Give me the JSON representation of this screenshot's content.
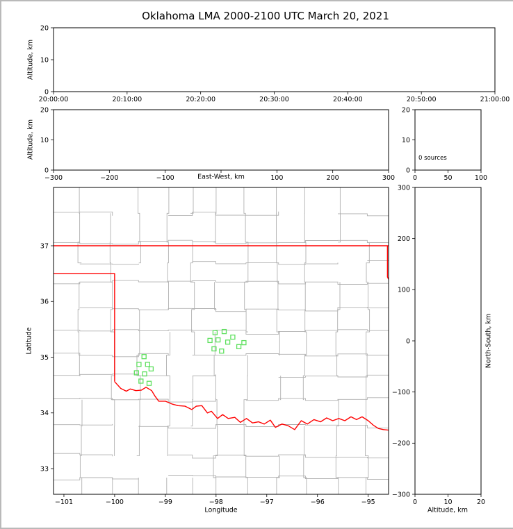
{
  "title": "Oklahoma LMA 2000-2100 UTC March 20, 2021",
  "colors": {
    "state_border": "#ff0000",
    "county_lines": "#b0b0b0",
    "station_marker": "#5fe05f",
    "frame": "#000000",
    "background": "#ffffff",
    "outer_border": "#b9b9b9"
  },
  "chart_data": [
    {
      "id": "time_height",
      "type": "scatter",
      "xlabel": "",
      "ylabel": "Altitude, km",
      "xlim": [
        "20:00:00",
        "21:00:00"
      ],
      "ylim": [
        0,
        20
      ],
      "x_ticks": [
        "20:00:00",
        "20:10:00",
        "20:20:00",
        "20:30:00",
        "20:40:00",
        "20:50:00",
        "21:00:00"
      ],
      "y_ticks": [
        "0",
        "10",
        "20"
      ],
      "points": []
    },
    {
      "id": "ew_height",
      "type": "scatter",
      "xlabel": "East-West, km",
      "ylabel": "Altitude, km",
      "xlim": [
        -300,
        300
      ],
      "ylim": [
        0,
        20
      ],
      "x_ticks": [
        "−300",
        "−200",
        "−100",
        "",
        "100",
        "200",
        "300"
      ],
      "y_ticks": [
        "0",
        "10",
        "20"
      ],
      "points": []
    },
    {
      "id": "altitude_histogram",
      "type": "line",
      "xlabel": "",
      "ylabel": "",
      "xlim": [
        0,
        100
      ],
      "ylim": [
        0,
        20
      ],
      "x_ticks": [
        "0",
        "50",
        "100"
      ],
      "y_ticks": [
        "0",
        "10",
        "20"
      ],
      "annotation": "0 sources",
      "points": []
    },
    {
      "id": "plan_view_map",
      "type": "scatter",
      "xlabel": "Longitude",
      "ylabel": "Latitude",
      "xlim": [
        -101.2,
        -94.6
      ],
      "ylim": [
        32.54,
        38.05
      ],
      "x_ticks": [
        "−101",
        "−100",
        "−99",
        "−98",
        "−97",
        "−96",
        "−95"
      ],
      "x_tick_values": [
        -101,
        -100,
        -99,
        -98,
        -97,
        -96,
        -95
      ],
      "y_ticks": [
        "33",
        "34",
        "35",
        "36",
        "37"
      ],
      "y_tick_values": [
        33,
        34,
        35,
        36,
        37
      ],
      "stations": [
        [
          -99.42,
          35.01
        ],
        [
          -99.52,
          34.87
        ],
        [
          -99.35,
          34.87
        ],
        [
          -99.57,
          34.72
        ],
        [
          -99.41,
          34.7
        ],
        [
          -99.28,
          34.79
        ],
        [
          -99.48,
          34.57
        ],
        [
          -99.32,
          34.53
        ],
        [
          -98.02,
          35.44
        ],
        [
          -97.84,
          35.46
        ],
        [
          -98.12,
          35.3
        ],
        [
          -97.96,
          35.31
        ],
        [
          -97.77,
          35.27
        ],
        [
          -98.04,
          35.15
        ],
        [
          -97.89,
          35.11
        ],
        [
          -97.55,
          35.19
        ],
        [
          -97.67,
          35.36
        ],
        [
          -97.45,
          35.26
        ]
      ],
      "state_border": [
        [
          [
            -101.21,
            37.0
          ],
          [
            -94.6,
            37.0
          ]
        ],
        [
          [
            -101.21,
            36.5
          ],
          [
            -100.0,
            36.5
          ],
          [
            -100.0,
            34.56
          ]
        ],
        [
          [
            -100.0,
            34.56
          ],
          [
            -99.95,
            34.51
          ],
          [
            -99.88,
            34.44
          ],
          [
            -99.77,
            34.39
          ],
          [
            -99.69,
            34.43
          ],
          [
            -99.58,
            34.4
          ],
          [
            -99.47,
            34.41
          ],
          [
            -99.38,
            34.46
          ],
          [
            -99.27,
            34.4
          ],
          [
            -99.21,
            34.31
          ],
          [
            -99.13,
            34.21
          ],
          [
            -99.0,
            34.21
          ],
          [
            -98.87,
            34.16
          ],
          [
            -98.75,
            34.13
          ],
          [
            -98.61,
            34.12
          ],
          [
            -98.48,
            34.06
          ],
          [
            -98.39,
            34.12
          ],
          [
            -98.28,
            34.13
          ],
          [
            -98.17,
            34.0
          ],
          [
            -98.09,
            34.03
          ],
          [
            -97.97,
            33.9
          ],
          [
            -97.87,
            33.97
          ],
          [
            -97.76,
            33.9
          ],
          [
            -97.63,
            33.92
          ],
          [
            -97.52,
            33.83
          ],
          [
            -97.4,
            33.9
          ],
          [
            -97.28,
            33.82
          ],
          [
            -97.16,
            33.84
          ],
          [
            -97.05,
            33.8
          ],
          [
            -96.93,
            33.87
          ],
          [
            -96.83,
            33.74
          ],
          [
            -96.7,
            33.8
          ],
          [
            -96.58,
            33.77
          ],
          [
            -96.45,
            33.7
          ],
          [
            -96.32,
            33.86
          ],
          [
            -96.2,
            33.8
          ],
          [
            -96.07,
            33.88
          ],
          [
            -95.94,
            33.84
          ],
          [
            -95.82,
            33.91
          ],
          [
            -95.7,
            33.86
          ],
          [
            -95.58,
            33.9
          ],
          [
            -95.46,
            33.86
          ],
          [
            -95.34,
            33.93
          ],
          [
            -95.23,
            33.88
          ],
          [
            -95.12,
            33.93
          ],
          [
            -95.0,
            33.86
          ],
          [
            -94.9,
            33.78
          ],
          [
            -94.8,
            33.72
          ],
          [
            -94.7,
            33.7
          ],
          [
            -94.59,
            33.69
          ]
        ],
        [
          [
            -94.62,
            37.0
          ],
          [
            -94.62,
            36.44
          ],
          [
            -94.6,
            36.4
          ]
        ]
      ]
    },
    {
      "id": "ns_height",
      "type": "scatter",
      "xlabel": "Altitude, km",
      "ylabel": "North-South, km",
      "xlim": [
        0,
        20
      ],
      "ylim": [
        -300,
        300
      ],
      "x_ticks": [
        "0",
        "10",
        "20"
      ],
      "y_ticks": [
        "−300",
        "−200",
        "−100",
        "0",
        "100",
        "200",
        "300"
      ],
      "points": []
    }
  ]
}
